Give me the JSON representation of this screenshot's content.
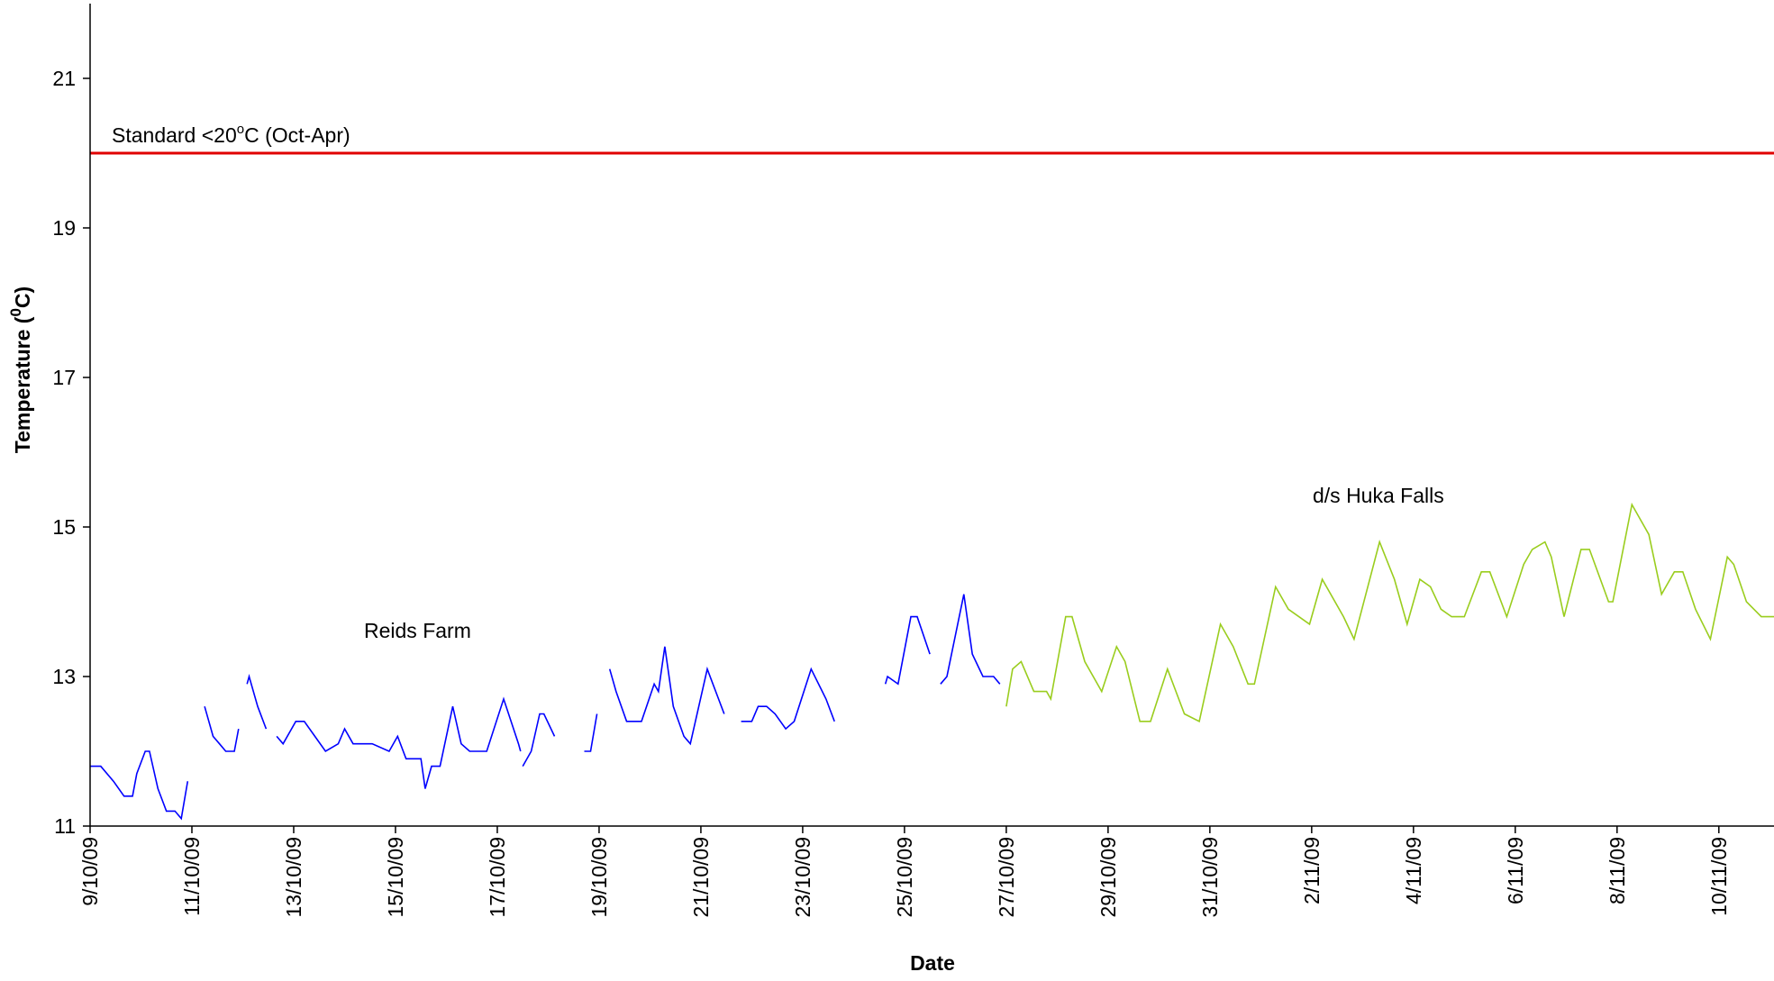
{
  "chart_data": {
    "type": "line",
    "x_label": "Date",
    "y_label": [
      "Temperature (",
      "0",
      "C)"
    ],
    "ylim": [
      11,
      22
    ],
    "yticks": [
      11,
      13,
      15,
      17,
      19,
      21
    ],
    "xlim": [
      "2009-10-09 00:00",
      "2009-11-11 02:00"
    ],
    "xticks": [
      {
        "value": "2009-10-09 00:00",
        "label": "9/10/09"
      },
      {
        "value": "2009-10-11 00:00",
        "label": "11/10/09"
      },
      {
        "value": "2009-10-13 00:00",
        "label": "13/10/09"
      },
      {
        "value": "2009-10-15 00:00",
        "label": "15/10/09"
      },
      {
        "value": "2009-10-17 00:00",
        "label": "17/10/09"
      },
      {
        "value": "2009-10-19 00:00",
        "label": "19/10/09"
      },
      {
        "value": "2009-10-21 00:00",
        "label": "21/10/09"
      },
      {
        "value": "2009-10-23 00:00",
        "label": "23/10/09"
      },
      {
        "value": "2009-10-25 00:00",
        "label": "25/10/09"
      },
      {
        "value": "2009-10-27 00:00",
        "label": "27/10/09"
      },
      {
        "value": "2009-10-29 00:00",
        "label": "29/10/09"
      },
      {
        "value": "2009-10-31 00:00",
        "label": "31/10/09"
      },
      {
        "value": "2009-11-02 00:00",
        "label": "2/11/09"
      },
      {
        "value": "2009-11-04 00:00",
        "label": "4/11/09"
      },
      {
        "value": "2009-11-06 00:00",
        "label": "6/11/09"
      },
      {
        "value": "2009-11-08 00:00",
        "label": "8/11/09"
      },
      {
        "value": "2009-11-10 00:00",
        "label": "10/11/09"
      }
    ],
    "reference_line": {
      "value": 20,
      "color": "#e00000",
      "label": [
        "Standard <20",
        "o",
        "C (Oct-Apr)"
      ]
    },
    "series": [
      {
        "name": "Reids Farm",
        "color": "#0000ff",
        "x": [
          "2009-10-09 00:00",
          "2009-10-09 05:00",
          "2009-10-09 11:00",
          "2009-10-09 16:00",
          "2009-10-09 20:00",
          "2009-10-09 22:00",
          "2009-10-10 02:00",
          "2009-10-10 04:00",
          "2009-10-10 08:00",
          "2009-10-10 12:00",
          "2009-10-10 16:00",
          "2009-10-10 19:00",
          "2009-10-10 22:00",
          null,
          "2009-10-11 06:00",
          "2009-10-11 10:00",
          "2009-10-11 13:00",
          "2009-10-11 16:00",
          "2009-10-11 20:00",
          "2009-10-11 22:00",
          null,
          "2009-10-12 02:00",
          "2009-10-12 03:00",
          "2009-10-12 07:00",
          "2009-10-12 11:00",
          null,
          "2009-10-12 16:00",
          "2009-10-12 19:00",
          "2009-10-12 23:00",
          "2009-10-13 01:00",
          "2009-10-13 05:00",
          "2009-10-13 10:00",
          "2009-10-13 15:00",
          "2009-10-13 21:00",
          "2009-10-14 00:00",
          "2009-10-14 04:00",
          "2009-10-14 13:00",
          "2009-10-14 21:00",
          "2009-10-15 01:00",
          "2009-10-15 05:00",
          "2009-10-15 12:00",
          "2009-10-15 14:00",
          "2009-10-15 17:00",
          "2009-10-15 21:00",
          "2009-10-16 03:00",
          "2009-10-16 07:00",
          "2009-10-16 11:00",
          "2009-10-16 19:00",
          "2009-10-17 03:00",
          "2009-10-17 10:00",
          "2009-10-17 11:00",
          null,
          "2009-10-17 12:00",
          "2009-10-17 16:00",
          "2009-10-17 20:00",
          "2009-10-17 22:00",
          "2009-10-18 03:00",
          null,
          "2009-10-18 17:00",
          "2009-10-18 20:00",
          "2009-10-18 23:00",
          null,
          "2009-10-19 05:00",
          "2009-10-19 08:00",
          "2009-10-19 13:00",
          "2009-10-19 20:00",
          "2009-10-20 02:00",
          "2009-10-20 04:00",
          "2009-10-20 07:00",
          "2009-10-20 11:00",
          "2009-10-20 16:00",
          "2009-10-20 19:00",
          "2009-10-21 03:00",
          "2009-10-21 11:00",
          null,
          "2009-10-21 19:00",
          "2009-10-22 00:00",
          "2009-10-22 03:00",
          "2009-10-22 07:00",
          "2009-10-22 11:00",
          "2009-10-22 16:00",
          "2009-10-22 20:00",
          "2009-10-23 04:00",
          "2009-10-23 11:00",
          "2009-10-23 15:00",
          null,
          "2009-10-24 15:00",
          "2009-10-24 16:00",
          "2009-10-24 21:00",
          "2009-10-25 03:00",
          "2009-10-25 06:00",
          "2009-10-25 12:00",
          null,
          "2009-10-25 17:00",
          "2009-10-25 20:00",
          "2009-10-26 04:00",
          "2009-10-26 08:00",
          "2009-10-26 13:00",
          "2009-10-26 18:00",
          "2009-10-26 21:00"
        ],
        "values": [
          11.8,
          11.8,
          11.6,
          11.4,
          11.4,
          11.7,
          12.0,
          12.0,
          11.5,
          11.2,
          11.2,
          11.1,
          11.6,
          null,
          12.6,
          12.2,
          12.1,
          12.0,
          12.0,
          12.3,
          null,
          12.9,
          13.0,
          12.6,
          12.3,
          null,
          12.2,
          12.1,
          12.3,
          12.4,
          12.4,
          12.2,
          12.0,
          12.1,
          12.3,
          12.1,
          12.1,
          12.0,
          12.2,
          11.9,
          11.9,
          11.5,
          11.8,
          11.8,
          12.6,
          12.1,
          12.0,
          12.0,
          12.7,
          12.1,
          12.0,
          null,
          11.8,
          12.0,
          12.5,
          12.5,
          12.2,
          null,
          12.0,
          12.0,
          12.5,
          null,
          13.1,
          12.8,
          12.4,
          12.4,
          12.9,
          12.8,
          13.4,
          12.6,
          12.2,
          12.1,
          13.1,
          12.5,
          null,
          12.4,
          12.4,
          12.6,
          12.6,
          12.5,
          12.3,
          12.4,
          13.1,
          12.7,
          12.4,
          null,
          12.9,
          13.0,
          12.9,
          13.8,
          13.8,
          13.3,
          null,
          12.9,
          13.0,
          14.1,
          13.3,
          13.0,
          13.0,
          12.9
        ]
      },
      {
        "name": "d/s Huka Falls",
        "color": "#9acd1e",
        "x": [
          "2009-10-27 00:00",
          "2009-10-27 03:00",
          "2009-10-27 07:00",
          "2009-10-27 13:00",
          "2009-10-27 19:00",
          "2009-10-27 21:00",
          "2009-10-28 04:00",
          "2009-10-28 07:00",
          "2009-10-28 13:00",
          "2009-10-28 21:00",
          "2009-10-29 04:00",
          "2009-10-29 08:00",
          "2009-10-29 15:00",
          "2009-10-29 20:00",
          "2009-10-30 04:00",
          "2009-10-30 12:00",
          "2009-10-30 19:00",
          "2009-10-31 05:00",
          "2009-10-31 11:00",
          "2009-10-31 18:00",
          "2009-10-31 21:00",
          "2009-11-01 07:00",
          "2009-11-01 13:00",
          "2009-11-01 23:00",
          "2009-11-02 05:00",
          "2009-11-02 15:00",
          "2009-11-02 20:00",
          "2009-11-03 08:00",
          "2009-11-03 15:00",
          "2009-11-03 21:00",
          "2009-11-04 03:00",
          "2009-11-04 08:00",
          "2009-11-04 13:00",
          "2009-11-04 18:00",
          "2009-11-05 00:00",
          "2009-11-05 08:00",
          "2009-11-05 12:00",
          "2009-11-05 20:00",
          "2009-11-06 04:00",
          "2009-11-06 08:00",
          "2009-11-06 14:00",
          "2009-11-06 17:00",
          "2009-11-06 23:00",
          "2009-11-07 07:00",
          "2009-11-07 11:00",
          "2009-11-07 20:00",
          "2009-11-07 22:00",
          "2009-11-08 07:00",
          "2009-11-08 15:00",
          "2009-11-08 21:00",
          "2009-11-09 03:00",
          "2009-11-09 07:00",
          "2009-11-09 13:00",
          "2009-11-09 20:00",
          "2009-11-10 04:00",
          "2009-11-10 07:00",
          "2009-11-10 13:00",
          "2009-11-10 20:00",
          "2009-11-11 02:00"
        ],
        "values": [
          12.6,
          13.1,
          13.2,
          12.8,
          12.8,
          12.7,
          13.8,
          13.8,
          13.2,
          12.8,
          13.4,
          13.2,
          12.4,
          12.4,
          13.1,
          12.5,
          12.4,
          13.7,
          13.4,
          12.9,
          12.9,
          14.2,
          13.9,
          13.7,
          14.3,
          13.8,
          13.5,
          14.8,
          14.3,
          13.7,
          14.3,
          14.2,
          13.9,
          13.8,
          13.8,
          14.4,
          14.4,
          13.8,
          14.5,
          14.7,
          14.8,
          14.6,
          13.8,
          14.7,
          14.7,
          14.0,
          14.0,
          15.3,
          14.9,
          14.1,
          14.4,
          14.4,
          13.9,
          13.5,
          14.6,
          14.5,
          14.0,
          13.8,
          13.8
        ]
      }
    ]
  }
}
